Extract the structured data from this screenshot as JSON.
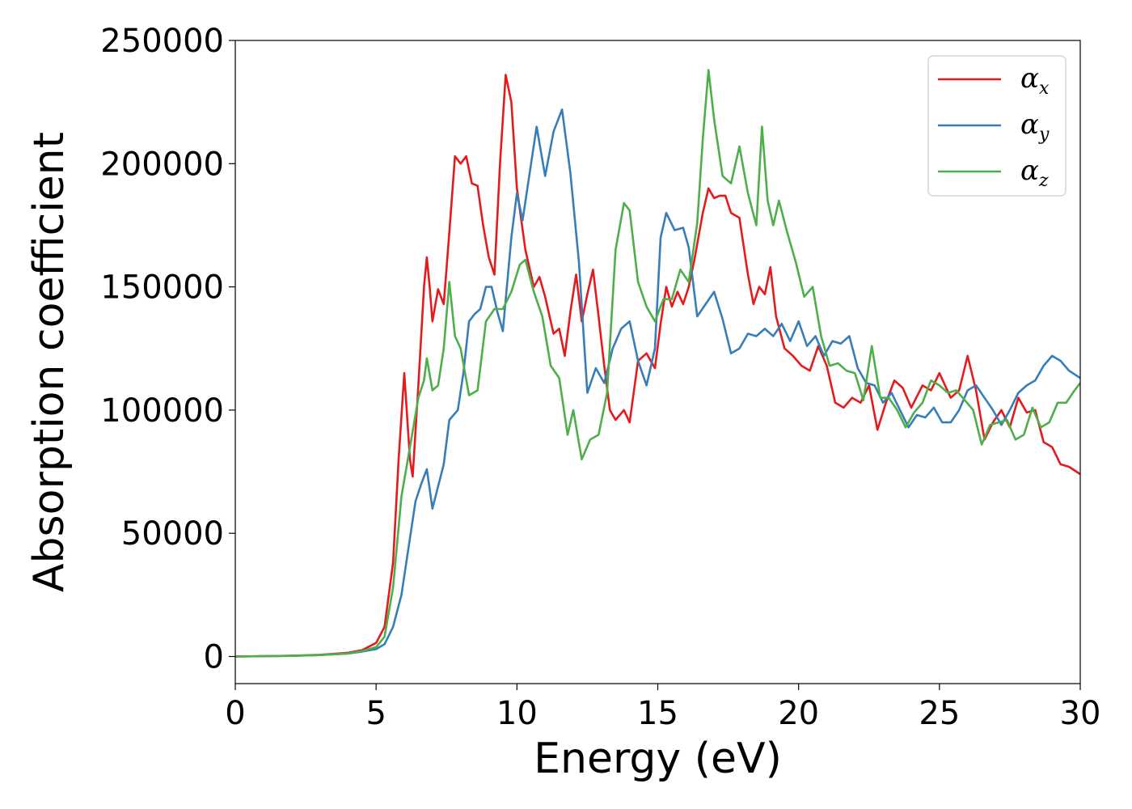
{
  "chart_data": {
    "type": "line",
    "title": "",
    "xlabel": "Energy (eV)",
    "ylabel": "Absorption coefficient",
    "xlim": [
      0,
      30
    ],
    "ylim": [
      -11000,
      250000
    ],
    "xticks": [
      "0",
      "5",
      "10",
      "15",
      "20",
      "25",
      "30"
    ],
    "yticks": [
      "0",
      "50000",
      "100000",
      "150000",
      "200000",
      "250000"
    ],
    "grid": false,
    "legend_position": "top-right",
    "series": [
      {
        "name": "αx",
        "symbol": "α",
        "subscript": "x",
        "color": "#e41a1c",
        "points": [
          [
            0,
            0
          ],
          [
            2,
            300
          ],
          [
            3,
            700
          ],
          [
            4,
            1500
          ],
          [
            4.5,
            2600
          ],
          [
            5,
            5500
          ],
          [
            5.3,
            12000
          ],
          [
            5.6,
            38000
          ],
          [
            5.8,
            80000
          ],
          [
            6.0,
            115000
          ],
          [
            6.2,
            80000
          ],
          [
            6.3,
            73000
          ],
          [
            6.5,
            110000
          ],
          [
            6.7,
            150000
          ],
          [
            6.8,
            162000
          ],
          [
            6.9,
            150000
          ],
          [
            7.0,
            136000
          ],
          [
            7.2,
            149000
          ],
          [
            7.4,
            143000
          ],
          [
            7.6,
            172000
          ],
          [
            7.8,
            203000
          ],
          [
            8.0,
            200000
          ],
          [
            8.2,
            203000
          ],
          [
            8.4,
            192000
          ],
          [
            8.6,
            191000
          ],
          [
            8.8,
            175000
          ],
          [
            9.0,
            162000
          ],
          [
            9.2,
            155000
          ],
          [
            9.4,
            200000
          ],
          [
            9.6,
            236000
          ],
          [
            9.8,
            225000
          ],
          [
            10.0,
            190000
          ],
          [
            10.3,
            165000
          ],
          [
            10.6,
            150000
          ],
          [
            10.8,
            154000
          ],
          [
            11.0,
            146000
          ],
          [
            11.3,
            131000
          ],
          [
            11.5,
            133000
          ],
          [
            11.7,
            122000
          ],
          [
            11.9,
            140000
          ],
          [
            12.1,
            155000
          ],
          [
            12.3,
            136000
          ],
          [
            12.5,
            147000
          ],
          [
            12.7,
            157000
          ],
          [
            12.9,
            138000
          ],
          [
            13.1,
            118000
          ],
          [
            13.3,
            100000
          ],
          [
            13.5,
            96000
          ],
          [
            13.8,
            100000
          ],
          [
            14.0,
            95000
          ],
          [
            14.3,
            120000
          ],
          [
            14.6,
            123000
          ],
          [
            14.9,
            117000
          ],
          [
            15.1,
            135000
          ],
          [
            15.3,
            150000
          ],
          [
            15.5,
            142000
          ],
          [
            15.7,
            148000
          ],
          [
            15.9,
            143000
          ],
          [
            16.1,
            150000
          ],
          [
            16.3,
            161000
          ],
          [
            16.6,
            180000
          ],
          [
            16.8,
            190000
          ],
          [
            17.0,
            186000
          ],
          [
            17.2,
            187000
          ],
          [
            17.4,
            187000
          ],
          [
            17.6,
            180000
          ],
          [
            17.9,
            178000
          ],
          [
            18.2,
            155000
          ],
          [
            18.4,
            143000
          ],
          [
            18.6,
            150000
          ],
          [
            18.8,
            147000
          ],
          [
            19.0,
            158000
          ],
          [
            19.2,
            138000
          ],
          [
            19.5,
            125000
          ],
          [
            19.8,
            122000
          ],
          [
            20.1,
            118000
          ],
          [
            20.4,
            116000
          ],
          [
            20.7,
            126000
          ],
          [
            21.0,
            118000
          ],
          [
            21.3,
            103000
          ],
          [
            21.6,
            101000
          ],
          [
            21.9,
            105000
          ],
          [
            22.2,
            103000
          ],
          [
            22.5,
            110000
          ],
          [
            22.8,
            92000
          ],
          [
            23.1,
            103000
          ],
          [
            23.4,
            112000
          ],
          [
            23.7,
            109000
          ],
          [
            24.0,
            101000
          ],
          [
            24.4,
            110000
          ],
          [
            24.7,
            108000
          ],
          [
            25.0,
            115000
          ],
          [
            25.4,
            105000
          ],
          [
            25.7,
            108000
          ],
          [
            26.0,
            122000
          ],
          [
            26.3,
            108000
          ],
          [
            26.6,
            88000
          ],
          [
            26.9,
            95000
          ],
          [
            27.2,
            100000
          ],
          [
            27.5,
            93000
          ],
          [
            27.8,
            105000
          ],
          [
            28.1,
            99000
          ],
          [
            28.4,
            100000
          ],
          [
            28.7,
            87000
          ],
          [
            29.0,
            85000
          ],
          [
            29.3,
            78000
          ],
          [
            29.6,
            77000
          ],
          [
            30,
            74000
          ]
        ]
      },
      {
        "name": "αy",
        "symbol": "α",
        "subscript": "y",
        "color": "#377eb8",
        "points": [
          [
            0,
            0
          ],
          [
            2,
            250
          ],
          [
            3,
            600
          ],
          [
            4,
            1200
          ],
          [
            4.5,
            2000
          ],
          [
            5,
            3000
          ],
          [
            5.3,
            5000
          ],
          [
            5.6,
            12000
          ],
          [
            5.9,
            25000
          ],
          [
            6.2,
            48000
          ],
          [
            6.4,
            63000
          ],
          [
            6.6,
            70000
          ],
          [
            6.8,
            76000
          ],
          [
            6.9,
            68000
          ],
          [
            7.0,
            60000
          ],
          [
            7.2,
            69000
          ],
          [
            7.4,
            78000
          ],
          [
            7.6,
            96000
          ],
          [
            7.9,
            100000
          ],
          [
            8.1,
            115000
          ],
          [
            8.3,
            136000
          ],
          [
            8.5,
            139000
          ],
          [
            8.7,
            141000
          ],
          [
            8.9,
            150000
          ],
          [
            9.1,
            150000
          ],
          [
            9.3,
            140000
          ],
          [
            9.5,
            132000
          ],
          [
            9.8,
            170000
          ],
          [
            10.0,
            188000
          ],
          [
            10.2,
            177000
          ],
          [
            10.5,
            200000
          ],
          [
            10.7,
            215000
          ],
          [
            11.0,
            195000
          ],
          [
            11.3,
            213000
          ],
          [
            11.6,
            222000
          ],
          [
            11.9,
            196000
          ],
          [
            12.2,
            160000
          ],
          [
            12.5,
            107000
          ],
          [
            12.8,
            117000
          ],
          [
            13.1,
            111000
          ],
          [
            13.4,
            125000
          ],
          [
            13.7,
            133000
          ],
          [
            14.0,
            136000
          ],
          [
            14.3,
            120000
          ],
          [
            14.6,
            110000
          ],
          [
            14.9,
            125000
          ],
          [
            15.1,
            170000
          ],
          [
            15.3,
            180000
          ],
          [
            15.6,
            173000
          ],
          [
            15.9,
            174000
          ],
          [
            16.1,
            166000
          ],
          [
            16.4,
            138000
          ],
          [
            16.7,
            143000
          ],
          [
            17.0,
            148000
          ],
          [
            17.3,
            137000
          ],
          [
            17.6,
            123000
          ],
          [
            17.9,
            125000
          ],
          [
            18.2,
            131000
          ],
          [
            18.5,
            130000
          ],
          [
            18.8,
            133000
          ],
          [
            19.1,
            130000
          ],
          [
            19.4,
            135000
          ],
          [
            19.7,
            128000
          ],
          [
            20.0,
            136000
          ],
          [
            20.3,
            126000
          ],
          [
            20.6,
            130000
          ],
          [
            20.9,
            122000
          ],
          [
            21.2,
            128000
          ],
          [
            21.5,
            127000
          ],
          [
            21.8,
            130000
          ],
          [
            22.1,
            117000
          ],
          [
            22.4,
            111000
          ],
          [
            22.7,
            110000
          ],
          [
            23.0,
            103000
          ],
          [
            23.3,
            107000
          ],
          [
            23.6,
            100000
          ],
          [
            23.9,
            93000
          ],
          [
            24.2,
            98000
          ],
          [
            24.5,
            97000
          ],
          [
            24.8,
            101000
          ],
          [
            25.1,
            95000
          ],
          [
            25.4,
            95000
          ],
          [
            25.7,
            100000
          ],
          [
            26.0,
            108000
          ],
          [
            26.3,
            110000
          ],
          [
            26.6,
            105000
          ],
          [
            26.9,
            100000
          ],
          [
            27.2,
            94000
          ],
          [
            27.5,
            100000
          ],
          [
            27.8,
            107000
          ],
          [
            28.1,
            110000
          ],
          [
            28.4,
            112000
          ],
          [
            28.7,
            118000
          ],
          [
            29.0,
            122000
          ],
          [
            29.3,
            120000
          ],
          [
            29.6,
            116000
          ],
          [
            30,
            113000
          ]
        ]
      },
      {
        "name": "αz",
        "symbol": "α",
        "subscript": "z",
        "color": "#4daf4a",
        "points": [
          [
            0,
            0
          ],
          [
            2,
            250
          ],
          [
            3,
            600
          ],
          [
            4,
            1200
          ],
          [
            4.5,
            2200
          ],
          [
            5,
            3800
          ],
          [
            5.3,
            8000
          ],
          [
            5.6,
            28000
          ],
          [
            5.9,
            65000
          ],
          [
            6.2,
            85000
          ],
          [
            6.5,
            105000
          ],
          [
            6.7,
            112000
          ],
          [
            6.8,
            121000
          ],
          [
            7.0,
            108000
          ],
          [
            7.2,
            110000
          ],
          [
            7.4,
            125000
          ],
          [
            7.6,
            152000
          ],
          [
            7.8,
            130000
          ],
          [
            8.0,
            125000
          ],
          [
            8.3,
            106000
          ],
          [
            8.6,
            108000
          ],
          [
            8.9,
            136000
          ],
          [
            9.2,
            141000
          ],
          [
            9.5,
            141000
          ],
          [
            9.8,
            148000
          ],
          [
            10.1,
            159000
          ],
          [
            10.3,
            161000
          ],
          [
            10.6,
            148000
          ],
          [
            10.9,
            138000
          ],
          [
            11.2,
            118000
          ],
          [
            11.5,
            113000
          ],
          [
            11.8,
            90000
          ],
          [
            12.0,
            100000
          ],
          [
            12.3,
            80000
          ],
          [
            12.6,
            88000
          ],
          [
            12.9,
            90000
          ],
          [
            13.2,
            107000
          ],
          [
            13.5,
            165000
          ],
          [
            13.8,
            184000
          ],
          [
            14.0,
            181000
          ],
          [
            14.3,
            152000
          ],
          [
            14.6,
            142000
          ],
          [
            14.9,
            136000
          ],
          [
            15.2,
            145000
          ],
          [
            15.5,
            145000
          ],
          [
            15.8,
            157000
          ],
          [
            16.1,
            152000
          ],
          [
            16.4,
            176000
          ],
          [
            16.6,
            210000
          ],
          [
            16.8,
            238000
          ],
          [
            17.0,
            218000
          ],
          [
            17.3,
            195000
          ],
          [
            17.6,
            192000
          ],
          [
            17.9,
            207000
          ],
          [
            18.2,
            188000
          ],
          [
            18.5,
            175000
          ],
          [
            18.7,
            215000
          ],
          [
            18.9,
            185000
          ],
          [
            19.1,
            175000
          ],
          [
            19.3,
            185000
          ],
          [
            19.6,
            172000
          ],
          [
            19.9,
            160000
          ],
          [
            20.2,
            146000
          ],
          [
            20.5,
            150000
          ],
          [
            20.8,
            130000
          ],
          [
            21.1,
            118000
          ],
          [
            21.4,
            119000
          ],
          [
            21.7,
            116000
          ],
          [
            22.0,
            115000
          ],
          [
            22.3,
            104000
          ],
          [
            22.6,
            126000
          ],
          [
            22.9,
            105000
          ],
          [
            23.2,
            105000
          ],
          [
            23.5,
            100000
          ],
          [
            23.8,
            93000
          ],
          [
            24.1,
            99000
          ],
          [
            24.4,
            103000
          ],
          [
            24.7,
            112000
          ],
          [
            25.0,
            110000
          ],
          [
            25.3,
            107000
          ],
          [
            25.6,
            108000
          ],
          [
            25.9,
            104000
          ],
          [
            26.2,
            100000
          ],
          [
            26.5,
            86000
          ],
          [
            26.8,
            94000
          ],
          [
            27.1,
            95000
          ],
          [
            27.4,
            96000
          ],
          [
            27.7,
            88000
          ],
          [
            28.0,
            90000
          ],
          [
            28.3,
            101000
          ],
          [
            28.6,
            93000
          ],
          [
            28.9,
            95000
          ],
          [
            29.2,
            103000
          ],
          [
            29.5,
            103000
          ],
          [
            29.8,
            108000
          ],
          [
            30,
            111000
          ]
        ]
      }
    ]
  }
}
